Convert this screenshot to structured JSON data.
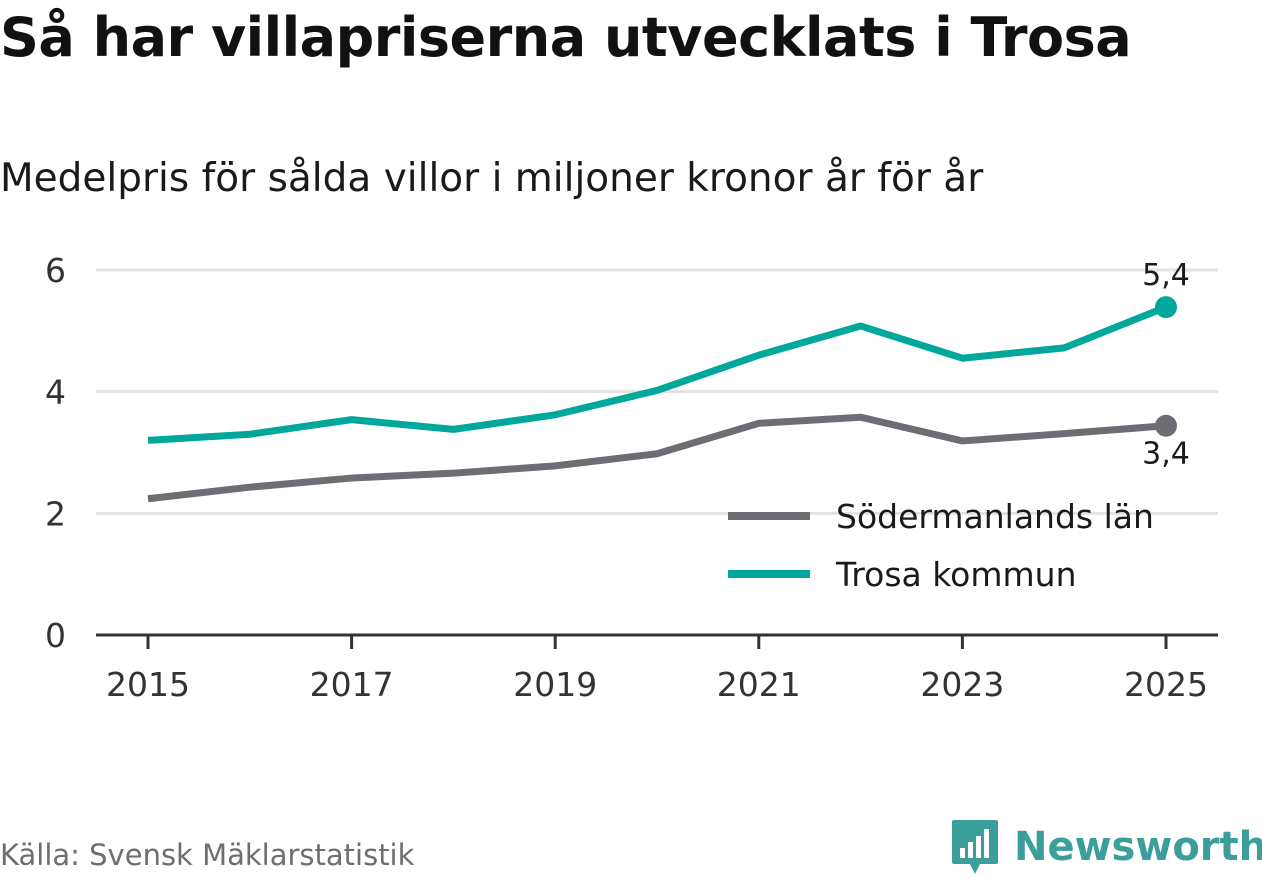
{
  "title": "Så har villapriserna utvecklats i Trosa",
  "subtitle": "Medelpris för sålda villor i miljoner kronor år för år",
  "source": "Källa: Svensk Mäklarstatistik",
  "brand": "Newsworthy",
  "colors": {
    "trosa": "#00a89c",
    "lan": "#6e6d73",
    "grid": "#e2e2e2",
    "axis": "#333333",
    "brand": "#3a9e9a"
  },
  "chart_data": {
    "type": "line",
    "title": "Så har villapriserna utvecklats i Trosa",
    "subtitle": "Medelpris för sålda villor i miljoner kronor år för år",
    "xlabel": "",
    "ylabel": "",
    "x": [
      2015,
      2016,
      2017,
      2018,
      2019,
      2020,
      2021,
      2022,
      2023,
      2024,
      2025
    ],
    "x_ticks": [
      "2015",
      "2017",
      "2019",
      "2021",
      "2023",
      "2025"
    ],
    "y_ticks": [
      "0",
      "2",
      "4",
      "6"
    ],
    "ylim": [
      0,
      6
    ],
    "xlim": [
      2015,
      2025
    ],
    "grid": true,
    "legend_position": "bottom-right",
    "series": [
      {
        "name": "Södermanlands län",
        "color": "#6e6d73",
        "values": [
          2.24,
          2.43,
          2.58,
          2.66,
          2.78,
          2.98,
          3.48,
          3.58,
          3.19,
          3.31,
          3.44
        ],
        "end_label": "3,4"
      },
      {
        "name": "Trosa kommun",
        "color": "#00a89c",
        "values": [
          3.2,
          3.3,
          3.54,
          3.38,
          3.62,
          4.02,
          4.6,
          5.08,
          4.55,
          4.72,
          5.39
        ],
        "end_label": "5,4"
      }
    ]
  }
}
